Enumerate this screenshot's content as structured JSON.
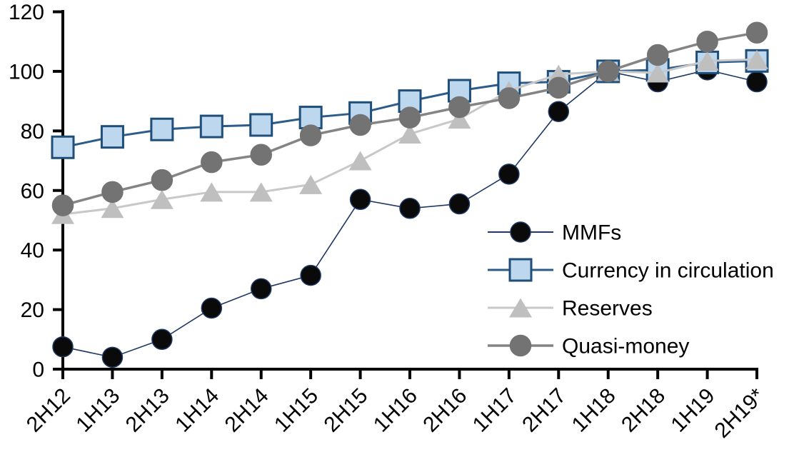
{
  "chart_data": {
    "type": "line",
    "title": "",
    "xlabel": "",
    "ylabel": "",
    "categories": [
      "2H12",
      "1H13",
      "2H13",
      "1H14",
      "2H14",
      "1H15",
      "2H15",
      "1H16",
      "2H16",
      "1H17",
      "2H17",
      "1H18",
      "2H18",
      "1H19",
      "2H19*"
    ],
    "series": [
      {
        "name": "MMFs",
        "marker": "circle",
        "marker_size": 28,
        "line_color": "#1F3864",
        "fill_color": "#0a0a0a",
        "stroke_color": "#1F3864",
        "line_width": 1.6,
        "values": [
          7.5,
          4,
          10,
          20.5,
          27,
          31.5,
          57,
          54,
          55.5,
          65.5,
          86.5,
          100,
          96.5,
          100.5,
          96.5
        ]
      },
      {
        "name": "Currency in circulation",
        "marker": "square",
        "marker_size": 30,
        "line_color": "#2E5C8A",
        "fill_color": "#BDD7EE",
        "stroke_color": "#1F4E79",
        "line_width": 3,
        "values": [
          74.5,
          78,
          80.5,
          81.5,
          82,
          84.5,
          86,
          90,
          93.5,
          96,
          96.5,
          100,
          100.5,
          103,
          103.5
        ]
      },
      {
        "name": "Reserves",
        "marker": "triangle",
        "marker_size": 30,
        "line_color": "#C8C8C8",
        "fill_color": "#BFBFBF",
        "stroke_color": "#BFBFBF",
        "line_width": 3,
        "values": [
          52,
          54,
          57,
          59.5,
          59.5,
          62,
          70,
          79,
          84,
          93.5,
          99,
          100,
          99.5,
          103.5,
          104
        ]
      },
      {
        "name": "Quasi-money",
        "marker": "circle",
        "marker_size": 29,
        "line_color": "#848484",
        "fill_color": "#737373",
        "stroke_color": "#737373",
        "line_width": 3.5,
        "values": [
          55,
          59.5,
          63.5,
          69.5,
          72,
          78.5,
          82,
          84.5,
          88,
          91,
          94.5,
          100,
          105.5,
          110,
          113
        ]
      }
    ],
    "ylim": [
      0,
      120
    ],
    "yticks": [
      0,
      20,
      40,
      60,
      80,
      100,
      120
    ],
    "grid": false,
    "axis_color": "#000000",
    "legend": {
      "position": "inside-right",
      "items": [
        "MMFs",
        "Currency in circulation",
        "Reserves",
        "Quasi-money"
      ]
    }
  }
}
